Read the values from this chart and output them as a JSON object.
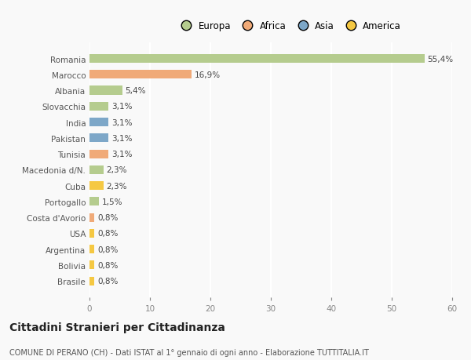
{
  "categories": [
    "Romania",
    "Marocco",
    "Albania",
    "Slovacchia",
    "India",
    "Pakistan",
    "Tunisia",
    "Macedonia d/N.",
    "Cuba",
    "Portogallo",
    "Costa d'Avorio",
    "USA",
    "Argentina",
    "Bolivia",
    "Brasile"
  ],
  "values": [
    55.4,
    16.9,
    5.4,
    3.1,
    3.1,
    3.1,
    3.1,
    2.3,
    2.3,
    1.5,
    0.8,
    0.8,
    0.8,
    0.8,
    0.8
  ],
  "labels": [
    "55,4%",
    "16,9%",
    "5,4%",
    "3,1%",
    "3,1%",
    "3,1%",
    "3,1%",
    "2,3%",
    "2,3%",
    "1,5%",
    "0,8%",
    "0,8%",
    "0,8%",
    "0,8%",
    "0,8%"
  ],
  "colors": [
    "#b5cc8e",
    "#f0aa78",
    "#b5cc8e",
    "#b5cc8e",
    "#7da7c8",
    "#7da7c8",
    "#f0aa78",
    "#b5cc8e",
    "#f5c842",
    "#b5cc8e",
    "#f0aa78",
    "#f5c842",
    "#f5c842",
    "#f5c842",
    "#f5c842"
  ],
  "continent_labels": [
    "Europa",
    "Africa",
    "Asia",
    "America"
  ],
  "continent_colors": [
    "#b5cc8e",
    "#f0aa78",
    "#7da7c8",
    "#f5c842"
  ],
  "title": "Cittadini Stranieri per Cittadinanza",
  "subtitle": "COMUNE DI PERANO (CH) - Dati ISTAT al 1° gennaio di ogni anno - Elaborazione TUTTITALIA.IT",
  "xlim": [
    0,
    60
  ],
  "xticks": [
    0,
    10,
    20,
    30,
    40,
    50,
    60
  ],
  "background_color": "#f9f9f9",
  "grid_color": "#ffffff",
  "bar_height": 0.55,
  "label_fontsize": 7.5,
  "tick_fontsize": 7.5,
  "title_fontsize": 10,
  "subtitle_fontsize": 7.0
}
